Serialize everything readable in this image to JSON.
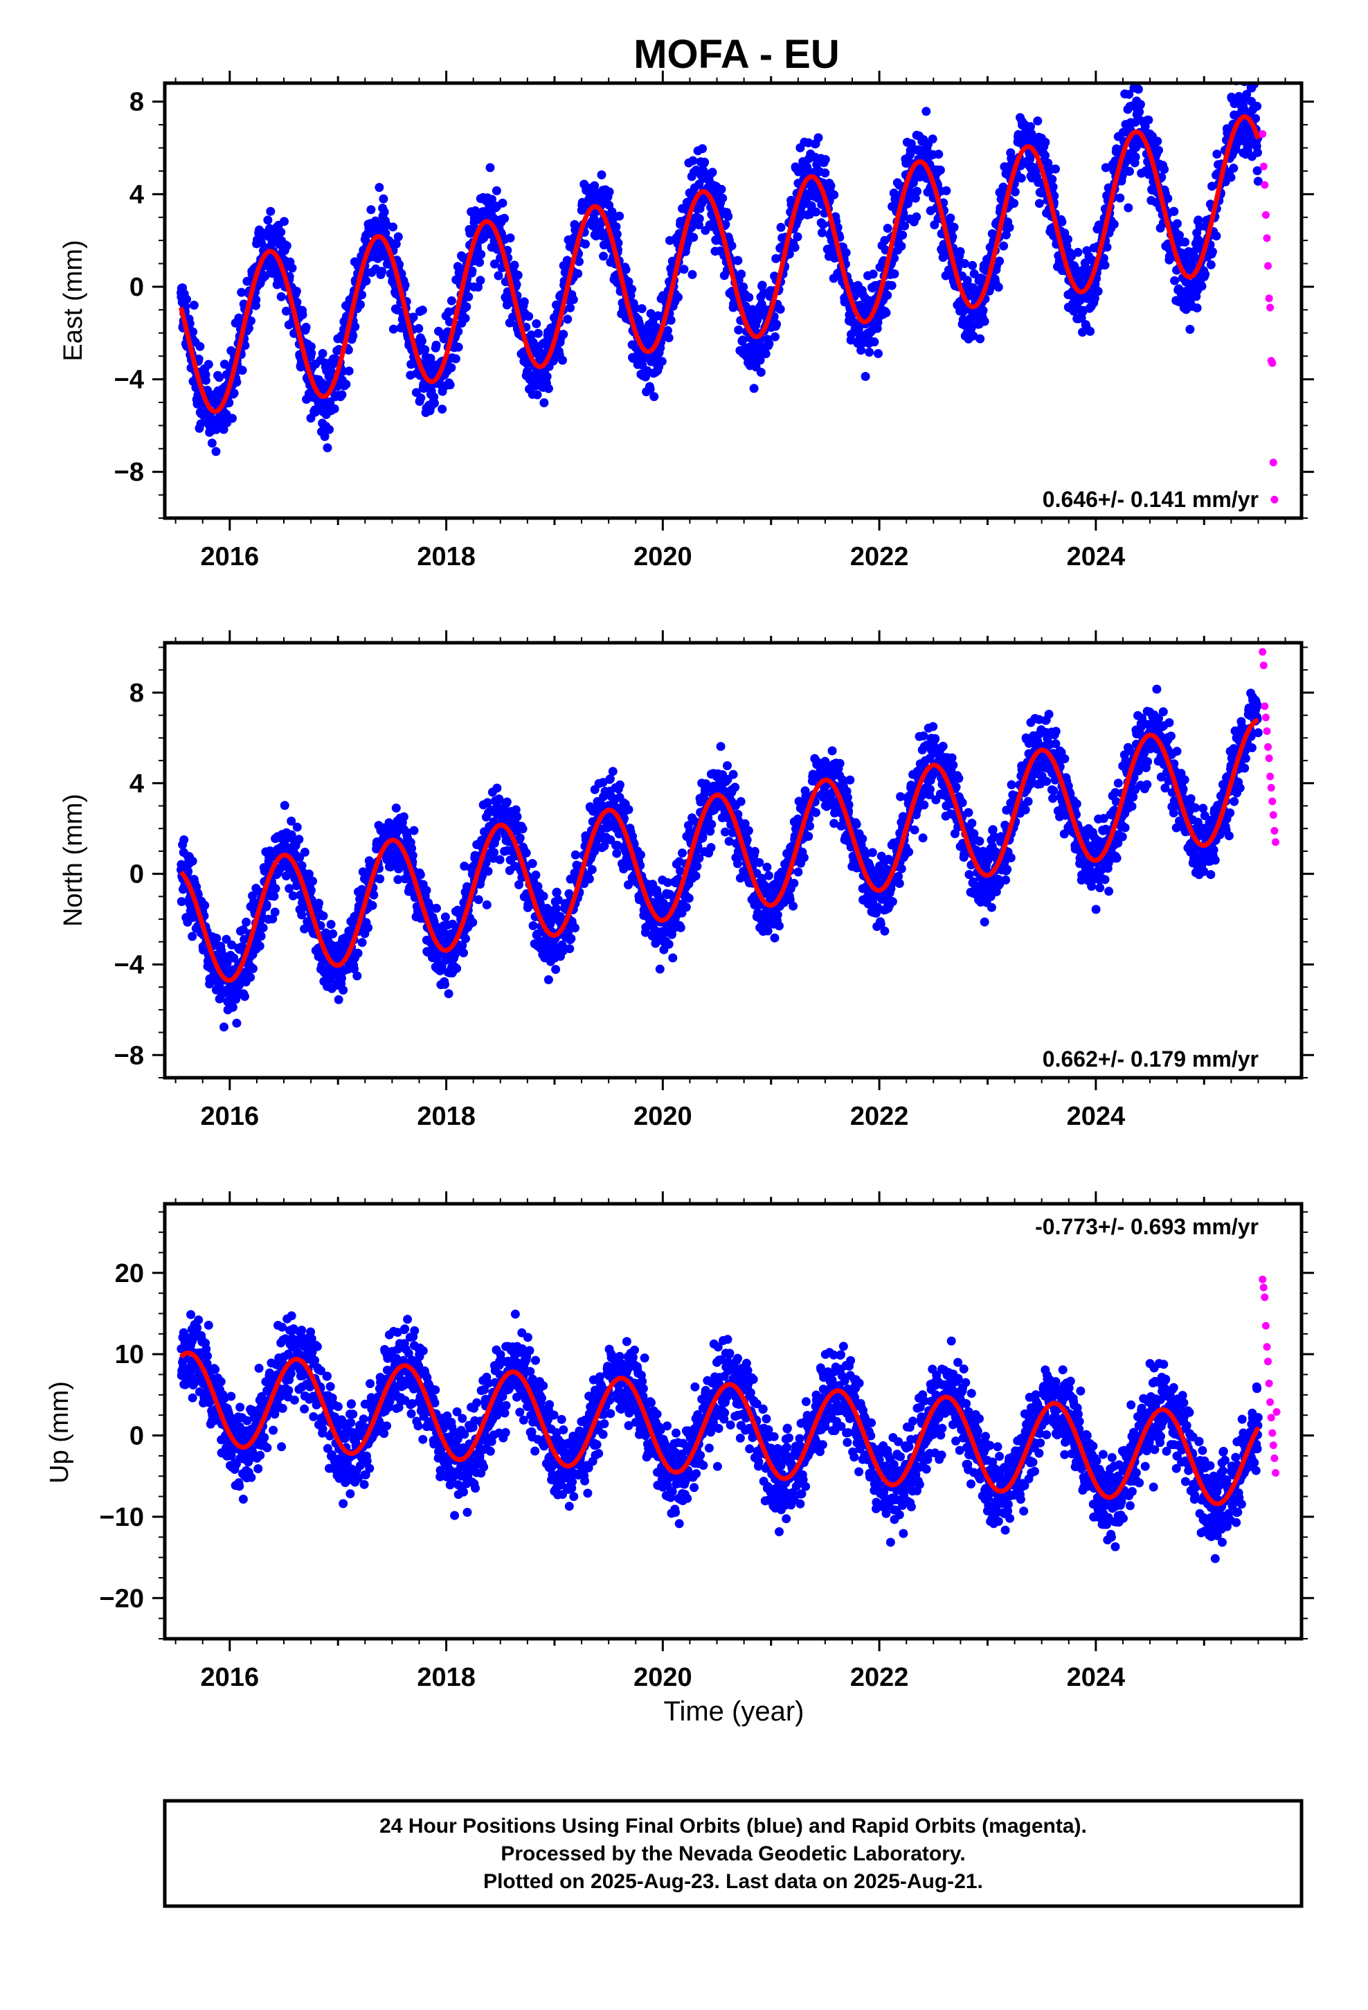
{
  "title": "MOFA - EU",
  "xlabel": "Time (year)",
  "footer": {
    "line1": "24 Hour Positions Using Final Orbits (blue) and Rapid Orbits (magenta).",
    "line2": "Processed by the Nevada Geodetic Laboratory.",
    "line3": "Plotted on 2025-Aug-23. Last data on 2025-Aug-21."
  },
  "colors": {
    "final": "#0000ff",
    "rapid": "#ff00ff",
    "model": "#ff0000",
    "axis": "#000000"
  },
  "chart_data": [
    {
      "type": "scatter",
      "name": "east",
      "ylabel": "East (mm)",
      "xlim": [
        2015.4,
        2025.9
      ],
      "ylim": [
        -10,
        8.8
      ],
      "xticks": [
        2016,
        2018,
        2020,
        2022,
        2024
      ],
      "yticks": [
        8,
        4,
        0,
        -4,
        -8
      ],
      "ytick_labels": [
        "8",
        "4",
        "0",
        "−4",
        "−8"
      ],
      "rate_text": "0.646+/- 0.141 mm/yr",
      "rate_pos": "bottom-right",
      "model": {
        "t0": 2015.55,
        "t1": 2025.5,
        "offset": -2.3,
        "trend": 0.646,
        "amp": 3.3,
        "peak_phase": 0.37
      },
      "final_scatter": 1.2,
      "rapid_points": {
        "t": [
          2025.54,
          2025.55,
          2025.56,
          2025.57,
          2025.58,
          2025.59,
          2025.6,
          2025.61,
          2025.62,
          2025.63,
          2025.64,
          2025.65
        ],
        "y": [
          6.6,
          5.2,
          4.4,
          3.1,
          2.1,
          0.9,
          -0.5,
          -0.9,
          -3.2,
          -3.3,
          -7.6,
          -9.2
        ]
      }
    },
    {
      "type": "scatter",
      "name": "north",
      "ylabel": "North (mm)",
      "xlim": [
        2015.4,
        2025.9
      ],
      "ylim": [
        -9,
        10.2
      ],
      "xticks": [
        2016,
        2018,
        2020,
        2022,
        2024
      ],
      "yticks": [
        8,
        4,
        0,
        -4,
        -8
      ],
      "ytick_labels": [
        "8",
        "4",
        "0",
        "−4",
        "−8"
      ],
      "rate_text": "0.662+/- 0.179 mm/yr",
      "rate_pos": "bottom-right",
      "model": {
        "t0": 2015.55,
        "t1": 2025.5,
        "offset": -2.4,
        "trend": 0.662,
        "amp": 2.6,
        "peak_phase": 0.5
      },
      "final_scatter": 1.1,
      "rapid_points": {
        "t": [
          2025.54,
          2025.55,
          2025.56,
          2025.57,
          2025.58,
          2025.59,
          2025.6,
          2025.61,
          2025.62,
          2025.63,
          2025.64,
          2025.65,
          2025.66
        ],
        "y": [
          9.8,
          9.2,
          7.4,
          6.9,
          6.3,
          5.6,
          5.1,
          4.3,
          3.8,
          3.2,
          2.6,
          1.9,
          1.4
        ]
      }
    },
    {
      "type": "scatter",
      "name": "up",
      "ylabel": "Up (mm)",
      "xlim": [
        2015.4,
        2025.9
      ],
      "ylim": [
        -25,
        28.5
      ],
      "xticks": [
        2016,
        2018,
        2020,
        2022,
        2024
      ],
      "yticks": [
        20,
        10,
        0,
        -10,
        -20
      ],
      "ytick_labels": [
        "20",
        "10",
        "0",
        "−10",
        "−20"
      ],
      "rate_text": "-0.773+/- 0.693 mm/yr",
      "rate_pos": "top-right",
      "model": {
        "t0": 2015.55,
        "t1": 2025.5,
        "offset": 4.6,
        "trend": -0.773,
        "amp": 5.6,
        "peak_phase": 0.62
      },
      "final_scatter": 3.6,
      "rapid_points": {
        "t": [
          2025.54,
          2025.55,
          2025.56,
          2025.57,
          2025.58,
          2025.59,
          2025.6,
          2025.61,
          2025.62,
          2025.63,
          2025.64,
          2025.65,
          2025.66,
          2025.67
        ],
        "y": [
          19.2,
          18.2,
          17.0,
          13.5,
          10.9,
          9.1,
          6.4,
          4.1,
          2.2,
          0.3,
          -1.2,
          -2.8,
          -4.6,
          2.9
        ]
      }
    }
  ]
}
